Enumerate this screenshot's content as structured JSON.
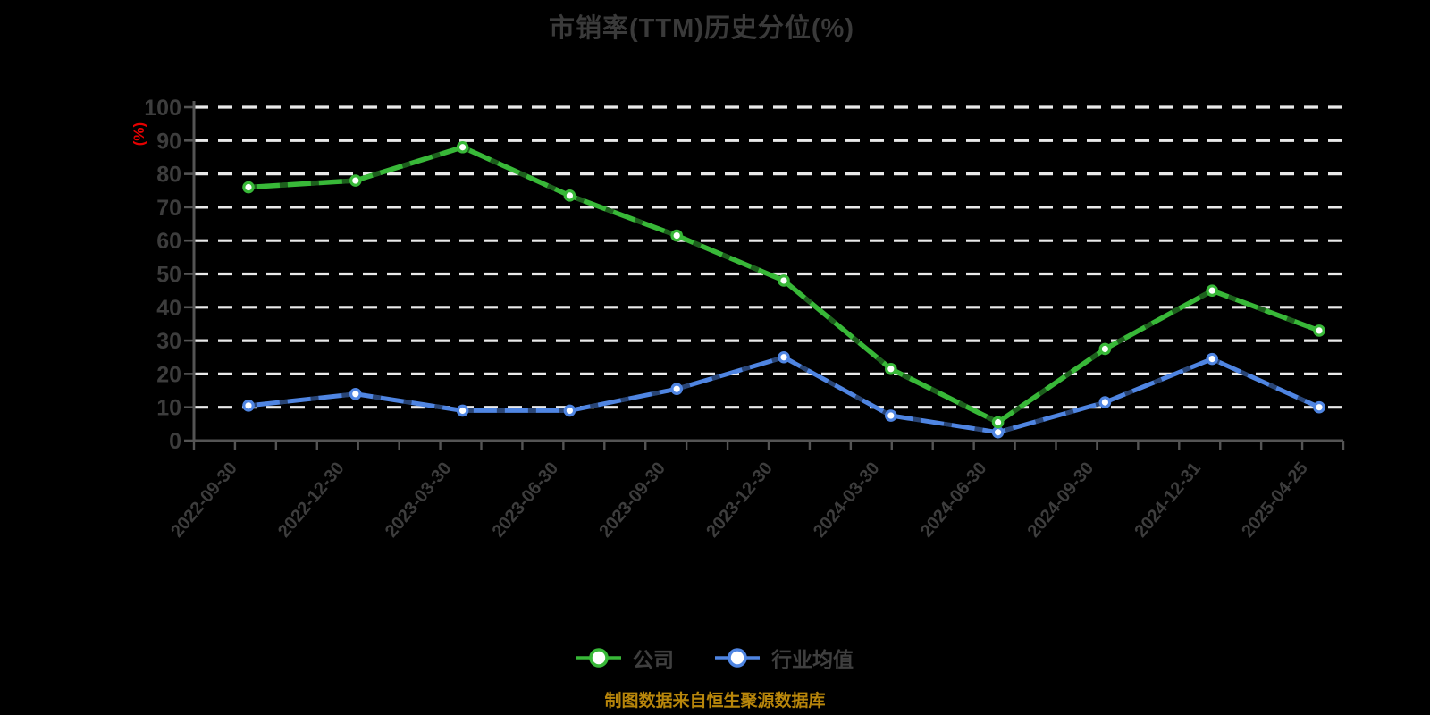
{
  "title": "市销率(TTM)历史分位(%)",
  "y_axis_unit_label": "(%)",
  "footer_note": "制图数据来自恒生聚源数据库",
  "colors": {
    "background": "#000000",
    "grid": "#e9e9e9",
    "axis": "#545454",
    "text": "#3d3d3d",
    "unit_label": "#e60000",
    "footer": "#b8860b",
    "company": "#38b838",
    "industry": "#4f85e2"
  },
  "legend": [
    {
      "key": "company",
      "label": "公司",
      "color": "#38b838"
    },
    {
      "key": "industry-average",
      "label": "行业均值",
      "color": "#4f85e2"
    }
  ],
  "chart_data": {
    "type": "line",
    "title": "市销率(TTM)历史分位(%)",
    "xlabel": "",
    "ylabel": "(%)",
    "ylim": [
      0,
      100
    ],
    "yticks": [
      0,
      10,
      20,
      30,
      40,
      50,
      60,
      70,
      80,
      90,
      100
    ],
    "grid": "horizontal-dashed-white",
    "legend_position": "bottom",
    "categories": [
      "2022-09-30",
      "2022-12-30",
      "2023-03-30",
      "2023-06-30",
      "2023-09-30",
      "2023-12-30",
      "2024-03-30",
      "2024-06-30",
      "2024-09-30",
      "2024-12-31",
      "2025-04-25"
    ],
    "series": [
      {
        "key": "company",
        "name": "公司",
        "color": "#38b838",
        "values": [
          76,
          78,
          88,
          73.5,
          61.5,
          48,
          21.5,
          5.5,
          27.5,
          45,
          33
        ]
      },
      {
        "key": "industry-average",
        "name": "行业均值",
        "color": "#4f85e2",
        "values": [
          10.5,
          14,
          9,
          9,
          15.5,
          25,
          7.5,
          2.5,
          11.5,
          24.5,
          10
        ]
      }
    ]
  }
}
